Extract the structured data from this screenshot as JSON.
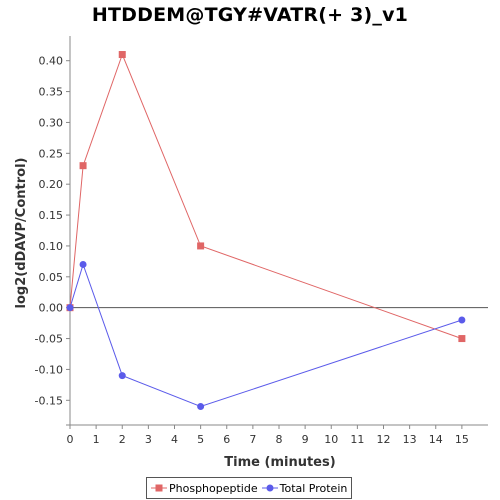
{
  "chart_data": {
    "type": "line",
    "title": "HTDDEM@TGY#VATR(+ 3)_v1",
    "xlabel": "Time (minutes)",
    "ylabel": "log2(dDAVP/Control)",
    "xlim": [
      0,
      16
    ],
    "ylim": [
      -0.19,
      0.44
    ],
    "x_ticks": [
      0,
      1,
      2,
      3,
      4,
      5,
      6,
      7,
      8,
      9,
      10,
      11,
      12,
      13,
      14,
      15
    ],
    "y_ticks": [
      -0.15,
      -0.1,
      -0.05,
      0.0,
      0.05,
      0.1,
      0.15,
      0.2,
      0.25,
      0.3,
      0.35,
      0.4
    ],
    "y_tick_labels": [
      "-0.15",
      "-0.10",
      "-0.05",
      "0.00",
      "0.05",
      "0.10",
      "0.15",
      "0.20",
      "0.25",
      "0.30",
      "0.35",
      "0.40"
    ],
    "grid": false,
    "zero_line": true,
    "legend_position": "bottom",
    "series": [
      {
        "name": "Phosphopeptide",
        "color": "#e06666",
        "marker": "square",
        "x": [
          0,
          0.5,
          2,
          5,
          15
        ],
        "y": [
          0.0,
          0.23,
          0.41,
          0.1,
          -0.05
        ]
      },
      {
        "name": "Total Protein",
        "color": "#5b5bea",
        "marker": "circle",
        "x": [
          0,
          0.5,
          2,
          5,
          15
        ],
        "y": [
          0.0,
          0.07,
          -0.11,
          -0.16,
          -0.02
        ]
      }
    ]
  }
}
